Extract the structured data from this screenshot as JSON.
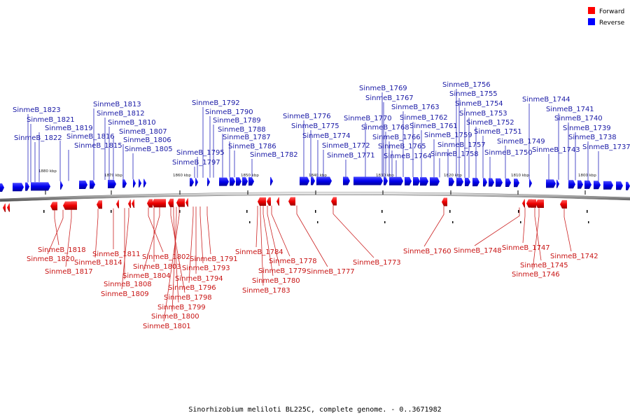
{
  "caption": "Sinorhizobium meliloti BL225C, complete genome. - 0..3671982",
  "legend": [
    {
      "label": "Forward",
      "color": "#ff0000"
    },
    {
      "label": "Reverse",
      "color": "#0000ff"
    }
  ],
  "ticks": [
    "1880 kbp",
    "1870 kbp",
    "1860 kbp",
    "1850 kbp",
    "1840 kbp",
    "1830 kbp",
    "1820 kbp",
    "1810 kbp",
    "1800 kbp"
  ],
  "reverse_genes": [
    "SinmeB_1823",
    "SinmeB_1821",
    "SinmeB_1822",
    "SinmeB_1819",
    "SinmeB_1816",
    "SinmeB_1815",
    "SinmeB_1813",
    "SinmeB_1812",
    "SinmeB_1810",
    "SinmeB_1807",
    "SinmeB_1806",
    "SinmeB_1805",
    "SinmeB_1792",
    "SinmeB_1790",
    "SinmeB_1789",
    "SinmeB_1788",
    "SinmeB_1795",
    "SinmeB_1797",
    "SinmeB_1787",
    "SinmeB_1786",
    "SinmeB_1782",
    "SinmeB_1776",
    "SinmeB_1775",
    "SinmeB_1774",
    "SinmeB_1772",
    "SinmeB_1771",
    "SinmeB_1770",
    "SinmeB_1769",
    "SinmeB_1767",
    "SinmeB_1768",
    "SinmeB_1766",
    "SinmeB_1765",
    "SinmeB_1764",
    "SinmeB_1763",
    "SinmeB_1762",
    "SinmeB_1761",
    "SinmeB_1759",
    "SinmeB_1758",
    "SinmeB_1757",
    "SinmeB_1756",
    "SinmeB_1755",
    "SinmeB_1754",
    "SinmeB_1753",
    "SinmeB_1752",
    "SinmeB_1751",
    "SinmeB_1750",
    "SinmeB_1749",
    "SinmeB_1744",
    "SinmeB_1743",
    "SinmeB_1741",
    "SinmeB_1740",
    "SinmeB_1739",
    "SinmeB_1738",
    "SinmeB_1737"
  ],
  "forward_genes": [
    "SinmeB_1818",
    "SinmeB_1820",
    "SinmeB_1817",
    "SinmeB_1814",
    "SinmeB_1811",
    "SinmeB_1808",
    "SinmeB_1809",
    "SinmeB_1802",
    "SinmeB_1803",
    "SinmeB_1804",
    "SinmeB_1798",
    "SinmeB_1799",
    "SinmeB_1800",
    "SinmeB_1801",
    "SinmeB_1791",
    "SinmeB_1793",
    "SinmeB_1794",
    "SinmeB_1796",
    "SinmeB_1784",
    "SinmeB_1778",
    "SinmeB_1779",
    "SinmeB_1780",
    "SinmeB_1783",
    "SinmeB_1777",
    "SinmeB_1773",
    "SinmeB_1760",
    "SinmeB_1748",
    "SinmeB_1747",
    "SinmeB_1745",
    "SinmeB_1746",
    "SinmeB_1742"
  ]
}
